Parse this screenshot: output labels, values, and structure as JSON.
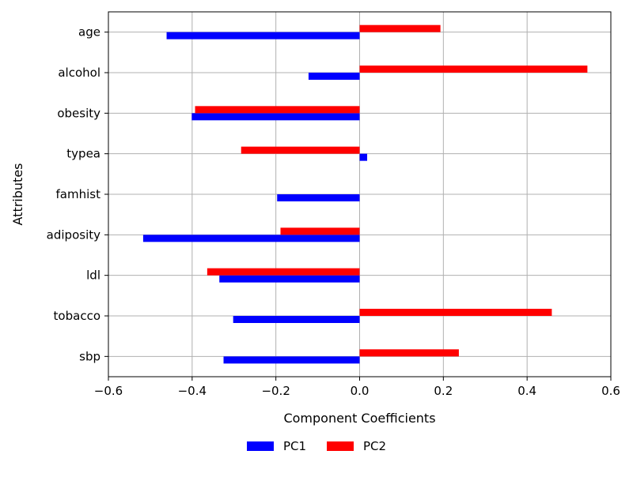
{
  "chart_data": {
    "type": "bar",
    "orientation": "horizontal",
    "categories": [
      "sbp",
      "tobacco",
      "ldl",
      "adiposity",
      "famhist",
      "typea",
      "obesity",
      "alcohol",
      "age"
    ],
    "series": [
      {
        "name": "PC1",
        "color": "#0000ff",
        "values": [
          -0.325,
          -0.302,
          -0.335,
          -0.517,
          -0.197,
          0.018,
          -0.401,
          -0.122,
          -0.461
        ]
      },
      {
        "name": "PC2",
        "color": "#ff0000",
        "values": [
          0.237,
          0.459,
          -0.364,
          -0.189,
          0.0,
          -0.283,
          -0.393,
          0.544,
          0.193
        ]
      }
    ],
    "xlabel": "Component Coefficients",
    "ylabel": "Attributes",
    "xlim": [
      -0.6,
      0.6
    ],
    "xticks": [
      -0.6,
      -0.4,
      -0.2,
      0.0,
      0.2,
      0.4,
      0.6
    ],
    "xtick_labels": [
      "−0.6",
      "−0.4",
      "−0.2",
      "0.0",
      "0.2",
      "0.4",
      "0.6"
    ],
    "grid": true,
    "legend_position": "bottom-center"
  }
}
